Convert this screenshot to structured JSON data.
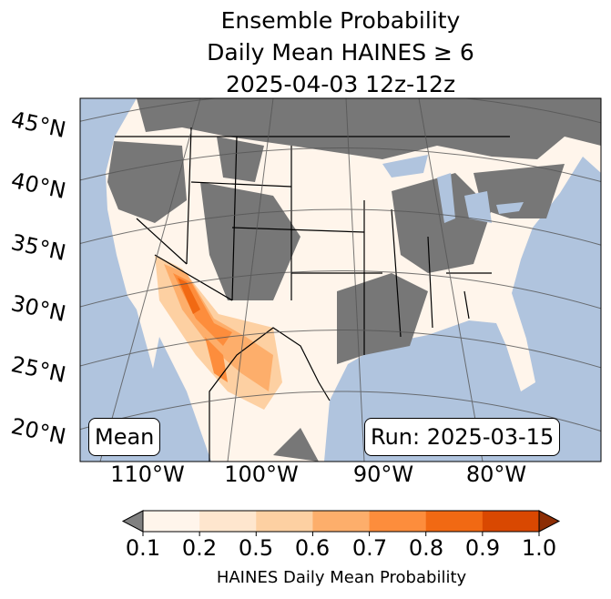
{
  "title": {
    "line1": "Ensemble Probability",
    "line2": "Daily Mean HAINES ≥ 6",
    "line3": "2025-04-03 12z-12z"
  },
  "lat_labels": [
    "45°N",
    "40°N",
    "35°N",
    "30°N",
    "25°N",
    "20°N"
  ],
  "lon_labels": [
    "110°W",
    "100°W",
    "90°W",
    "80°W"
  ],
  "stat_label": "Mean",
  "run_label": "Run: 2025-03-15",
  "colorbar": {
    "ticks": [
      "0.1",
      "0.2",
      "0.5",
      "0.6",
      "0.7",
      "0.8",
      "0.9",
      "1.0"
    ],
    "label": "HAINES Daily Mean Probability",
    "colors": [
      "#fff5eb",
      "#fee6ce",
      "#fdd0a2",
      "#fdae6b",
      "#fd8d3c",
      "#f16913",
      "#d94801"
    ],
    "under_color": "#808080",
    "over_color": "#8c2d04"
  },
  "colors": {
    "ocean": "#b0c4de",
    "land_low": "#808080"
  }
}
